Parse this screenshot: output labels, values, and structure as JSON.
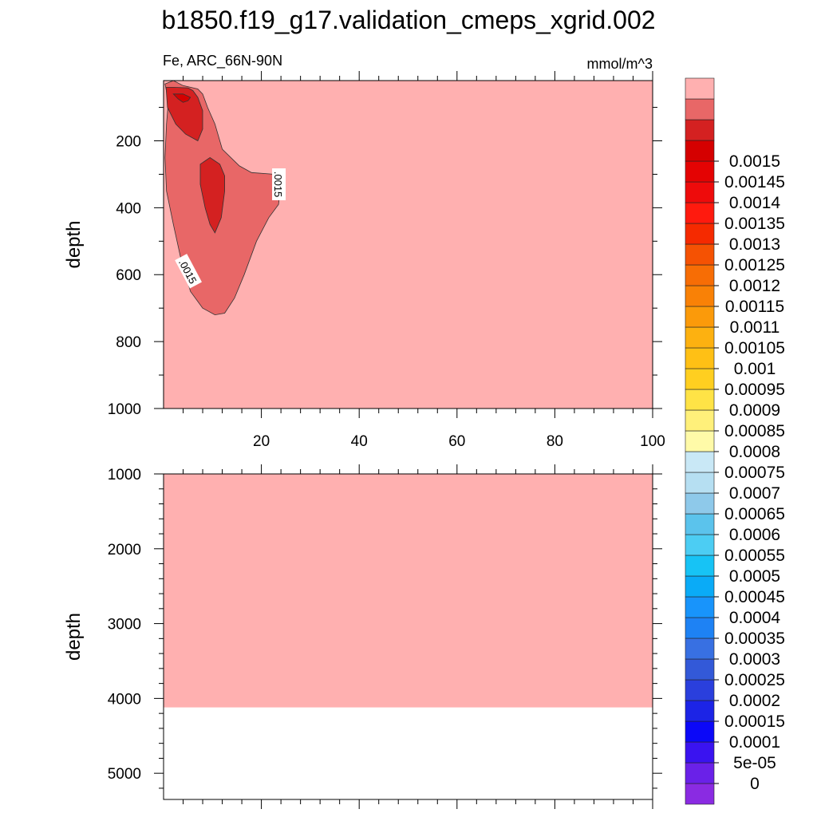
{
  "title": "b1850.f19_g17.validation_cmeps_xgrid.002",
  "subtitle_left": "Fe, ARC_66N-90N",
  "subtitle_right": "mmol/m^3",
  "chart_data": [
    {
      "type": "heatmap",
      "panel": "upper",
      "xlabel": "",
      "ylabel": "depth",
      "xlim": [
        0,
        100
      ],
      "ylim": [
        1000,
        20
      ],
      "yreversed": true,
      "x_ticks": [
        "20",
        "40",
        "60",
        "80",
        "100"
      ],
      "x_tick_values": [
        20,
        40,
        60,
        80,
        100
      ],
      "y_ticks": [
        "200",
        "400",
        "600",
        "800",
        "1000"
      ],
      "y_tick_values": [
        200,
        400,
        600,
        800,
        1000
      ],
      "background_level": "0.0015",
      "contour_labels": [
        {
          "text": ".0015",
          "x": 23.5,
          "y": 330
        },
        {
          "text": ".0015",
          "x": 5.0,
          "y": 590
        }
      ],
      "regions": [
        {
          "name": "contour-band-00145",
          "level": "0.00145",
          "outline": [
            [
              0.3,
              30
            ],
            [
              1.0,
              80
            ],
            [
              0.6,
              150
            ],
            [
              0.3,
              250
            ],
            [
              0.6,
              350
            ],
            [
              2.0,
              450
            ],
            [
              3.5,
              550
            ],
            [
              5.5,
              650
            ],
            [
              8.0,
              700
            ],
            [
              10.5,
              720
            ],
            [
              12.5,
              715
            ],
            [
              14.5,
              670
            ],
            [
              16.5,
              600
            ],
            [
              19.0,
              500
            ],
            [
              21.5,
              430
            ],
            [
              23.5,
              390
            ],
            [
              24.0,
              330
            ],
            [
              22.5,
              300
            ],
            [
              18.0,
              295
            ],
            [
              15.5,
              275
            ],
            [
              12.0,
              225
            ],
            [
              10.5,
              150
            ],
            [
              9.0,
              100
            ],
            [
              8.0,
              60
            ],
            [
              7.0,
              45
            ],
            [
              4.0,
              35
            ],
            [
              2.0,
              20
            ]
          ]
        },
        {
          "name": "contour-band-0014-upper",
          "level": "0.0014",
          "outline": [
            [
              0.5,
              40
            ],
            [
              0.8,
              100
            ],
            [
              2.5,
              150
            ],
            [
              4.5,
              180
            ],
            [
              7.0,
              200
            ],
            [
              8.0,
              165
            ],
            [
              8.0,
              110
            ],
            [
              7.0,
              70
            ],
            [
              6.0,
              50
            ],
            [
              5.0,
              42
            ],
            [
              2.0,
              40
            ]
          ]
        },
        {
          "name": "contour-band-0014-lower",
          "level": "0.0014",
          "outline": [
            [
              7.5,
              270
            ],
            [
              7.5,
              330
            ],
            [
              8.5,
              400
            ],
            [
              9.5,
              450
            ],
            [
              10.5,
              475
            ],
            [
              11.8,
              430
            ],
            [
              12.5,
              350
            ],
            [
              12.5,
              305
            ],
            [
              11.5,
              270
            ],
            [
              9.5,
              250
            ]
          ]
        },
        {
          "name": "contour-band-00135",
          "level": "0.00135",
          "outline": [
            [
              2.0,
              60
            ],
            [
              3.0,
              75
            ],
            [
              4.0,
              85
            ],
            [
              5.0,
              80
            ],
            [
              5.5,
              70
            ],
            [
              4.0,
              60
            ]
          ]
        }
      ]
    },
    {
      "type": "heatmap",
      "panel": "lower",
      "xlabel": "",
      "ylabel": "depth",
      "xlim": [
        0,
        100
      ],
      "ylim": [
        5350,
        1000
      ],
      "yreversed": true,
      "y_ticks": [
        "1000",
        "2000",
        "3000",
        "4000",
        "5000"
      ],
      "y_tick_values": [
        1000,
        2000,
        3000,
        4000,
        5000
      ],
      "background_level": "0.0015",
      "fill_bottom_depth": 4120
    }
  ],
  "colorbar": {
    "swatches": [
      "#8a2be2",
      "#6a21e8",
      "#3a13f0",
      "#0b08f8",
      "#1c24e6",
      "#2a3fdd",
      "#3359d8",
      "#3870e2",
      "#1e82f4",
      "#1894fb",
      "#0aabf7",
      "#17c3f5",
      "#4ccdf3",
      "#5bc3ec",
      "#8ec9ea",
      "#b6dff2",
      "#c9e8f6",
      "#fffaa8",
      "#fff07a",
      "#ffe346",
      "#ffcf20",
      "#ffc015",
      "#fdb110",
      "#fb9a0a",
      "#f98106",
      "#f76d05",
      "#f55203",
      "#f52a00",
      "#ff1a0e",
      "#ee0b0b",
      "#e40303",
      "#d50000",
      "#d42121",
      "#e86767",
      "#ffb0b0"
    ],
    "labels": [
      "0",
      "5e-05",
      "0.0001",
      "0.00015",
      "0.0002",
      "0.00025",
      "0.0003",
      "0.00035",
      "0.0004",
      "0.00045",
      "0.0005",
      "0.00055",
      "0.0006",
      "0.00065",
      "0.0007",
      "0.00075",
      "0.0008",
      "0.00085",
      "0.0009",
      "0.00095",
      "0.001",
      "0.00105",
      "0.0011",
      "0.00115",
      "0.0012",
      "0.00125",
      "0.0013",
      "0.00135",
      "0.0014",
      "0.00145",
      "0.0015"
    ],
    "level_colors": {
      "0.0015": "#ffb0b0",
      "0.00145": "#e86767",
      "0.0014": "#d42121",
      "0.00135": "#d50000"
    }
  }
}
